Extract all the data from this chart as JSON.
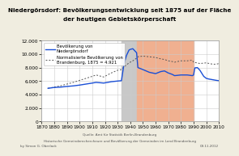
{
  "title_line1": "Niedergörsdorf: Bevölkerungsentwicklung seit 1875 auf der Fläche",
  "title_line2": "der heutigen Gebietskörperschaft",
  "ylim": [
    0,
    12000
  ],
  "xlim": [
    1870,
    2010
  ],
  "yticks": [
    0,
    2000,
    4000,
    6000,
    8000,
    10000,
    12000
  ],
  "xticks": [
    1870,
    1880,
    1890,
    1900,
    1910,
    1920,
    1930,
    1940,
    1950,
    1960,
    1970,
    1980,
    1990,
    2000,
    2010
  ],
  "nazi_start": 1933,
  "nazi_end": 1945,
  "communist_start": 1945,
  "communist_end": 1990,
  "nazi_color": "#c8c8c8",
  "communist_color": "#f0b090",
  "pop_color": "#1a4fd6",
  "branch_color": "#555555",
  "source_text": "Quelle: Amt für Statistik Berlin-Brandenburg",
  "source_text2": "Historische Gemeinderechercheure und Bevölkerung der Gemeinden im Land Brandenburg",
  "author_text": "by Simon G. Oberlack",
  "date_text": "09.11.2012",
  "legend_pop": "Bevölkerung von\nNiedergörsdorf",
  "legend_branch": "Normalisierte Bevölkerung von\nBrandenburg, 1875 = 4.921",
  "pop_data": [
    [
      1875,
      4921
    ],
    [
      1880,
      5050
    ],
    [
      1885,
      5100
    ],
    [
      1890,
      5200
    ],
    [
      1895,
      5280
    ],
    [
      1900,
      5400
    ],
    [
      1905,
      5550
    ],
    [
      1910,
      5700
    ],
    [
      1913,
      5800
    ],
    [
      1919,
      5700
    ],
    [
      1925,
      5900
    ],
    [
      1930,
      6000
    ],
    [
      1933,
      6050
    ],
    [
      1935,
      8500
    ],
    [
      1937,
      9800
    ],
    [
      1939,
      10600
    ],
    [
      1940,
      10700
    ],
    [
      1942,
      10800
    ],
    [
      1945,
      10200
    ],
    [
      1946,
      8000
    ],
    [
      1950,
      7700
    ],
    [
      1955,
      7300
    ],
    [
      1960,
      7100
    ],
    [
      1964,
      7400
    ],
    [
      1967,
      7500
    ],
    [
      1970,
      7200
    ],
    [
      1973,
      7000
    ],
    [
      1975,
      6800
    ],
    [
      1980,
      6900
    ],
    [
      1985,
      6900
    ],
    [
      1989,
      6800
    ],
    [
      1990,
      6900
    ],
    [
      1991,
      7950
    ],
    [
      1993,
      8000
    ],
    [
      1995,
      7600
    ],
    [
      1998,
      6700
    ],
    [
      2000,
      6400
    ],
    [
      2002,
      6300
    ],
    [
      2005,
      6200
    ],
    [
      2008,
      6100
    ],
    [
      2010,
      6050
    ]
  ],
  "branch_data": [
    [
      1875,
      4921
    ],
    [
      1880,
      5100
    ],
    [
      1885,
      5300
    ],
    [
      1890,
      5550
    ],
    [
      1895,
      5800
    ],
    [
      1900,
      6100
    ],
    [
      1905,
      6400
    ],
    [
      1910,
      6700
    ],
    [
      1913,
      6900
    ],
    [
      1919,
      6600
    ],
    [
      1925,
      7200
    ],
    [
      1930,
      7600
    ],
    [
      1933,
      7700
    ],
    [
      1935,
      8100
    ],
    [
      1939,
      8700
    ],
    [
      1940,
      8800
    ],
    [
      1942,
      9000
    ],
    [
      1945,
      9400
    ],
    [
      1946,
      9600
    ],
    [
      1950,
      9700
    ],
    [
      1955,
      9600
    ],
    [
      1960,
      9500
    ],
    [
      1964,
      9300
    ],
    [
      1967,
      9200
    ],
    [
      1970,
      9000
    ],
    [
      1973,
      8900
    ],
    [
      1975,
      8800
    ],
    [
      1980,
      9000
    ],
    [
      1985,
      9000
    ],
    [
      1989,
      9100
    ],
    [
      1990,
      8800
    ],
    [
      1995,
      8600
    ],
    [
      2000,
      8700
    ],
    [
      2005,
      8500
    ],
    [
      2008,
      8500
    ],
    [
      2010,
      8600
    ]
  ],
  "background_color": "#f0ede0",
  "plot_bg_color": "#ffffff",
  "grid_color": "#cccccc",
  "title_fontsize": 5.2,
  "tick_fontsize": 4.2,
  "legend_fontsize": 3.8,
  "source_fontsize": 3.0
}
